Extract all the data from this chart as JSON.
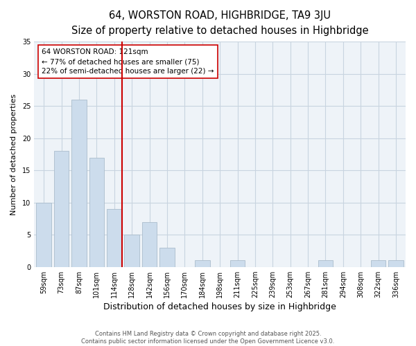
{
  "title": "64, WORSTON ROAD, HIGHBRIDGE, TA9 3JU",
  "subtitle": "Size of property relative to detached houses in Highbridge",
  "xlabel": "Distribution of detached houses by size in Highbridge",
  "ylabel": "Number of detached properties",
  "bar_labels": [
    "59sqm",
    "73sqm",
    "87sqm",
    "101sqm",
    "114sqm",
    "128sqm",
    "142sqm",
    "156sqm",
    "170sqm",
    "184sqm",
    "198sqm",
    "211sqm",
    "225sqm",
    "239sqm",
    "253sqm",
    "267sqm",
    "281sqm",
    "294sqm",
    "308sqm",
    "322sqm",
    "336sqm"
  ],
  "bar_values": [
    10,
    18,
    26,
    17,
    9,
    5,
    7,
    3,
    0,
    1,
    0,
    1,
    0,
    0,
    0,
    0,
    1,
    0,
    0,
    1,
    1
  ],
  "bar_color": "#ccdcec",
  "bar_edge_color": "#aabccc",
  "vline_x": 4.425,
  "vline_color": "#cc0000",
  "annotation_title": "64 WORSTON ROAD: 121sqm",
  "annotation_line1": "← 77% of detached houses are smaller (75)",
  "annotation_line2": "22% of semi-detached houses are larger (22) →",
  "annotation_box_facecolor": "#ffffff",
  "annotation_box_edgecolor": "#cc0000",
  "ylim": [
    0,
    35
  ],
  "yticks": [
    0,
    5,
    10,
    15,
    20,
    25,
    30,
    35
  ],
  "fig_facecolor": "#ffffff",
  "axes_facecolor": "#eef3f8",
  "grid_color": "#c8d4e0",
  "footer_line1": "Contains HM Land Registry data © Crown copyright and database right 2025.",
  "footer_line2": "Contains public sector information licensed under the Open Government Licence v3.0.",
  "title_fontsize": 10.5,
  "subtitle_fontsize": 9,
  "xlabel_fontsize": 9,
  "ylabel_fontsize": 8,
  "tick_fontsize": 7,
  "annotation_fontsize": 7.5,
  "footer_fontsize": 6
}
